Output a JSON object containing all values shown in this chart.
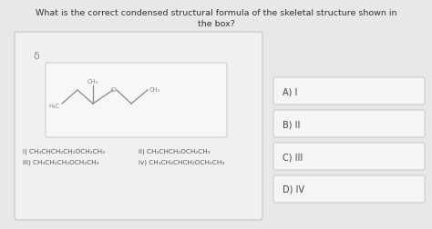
{
  "title_line1": "What is the correct condensed structural formula of the skeletal structure shown in",
  "title_line2": "the box?",
  "bg_color": "#e8e8e8",
  "box_bg": "#f0f0f0",
  "box_edge": "#c0c0c0",
  "inner_box_bg": "#f7f7f7",
  "inner_box_edge": "#c8c8c8",
  "answer_bg": "#f5f5f5",
  "answer_edge": "#c8c8c8",
  "line_color": "#888888",
  "text_color": "#555555",
  "options_left": [
    "i) CH₃CHCH₂CH₂OCH₂CH₃",
    "iii) CH₃CH₂CH₂OCH₂CH₃"
  ],
  "options_right": [
    "ii) CH₃CHCH₂OCH₂CH₃",
    "iv) CH₃CH₂CHCH₂OCH₂CH₃"
  ],
  "answers": [
    "A) I",
    "B) II",
    "C) III",
    "D) IV"
  ],
  "title_fontsize": 6.8,
  "option_fontsize": 5.2,
  "answer_fontsize": 7.0,
  "struct_fontsize": 4.8
}
